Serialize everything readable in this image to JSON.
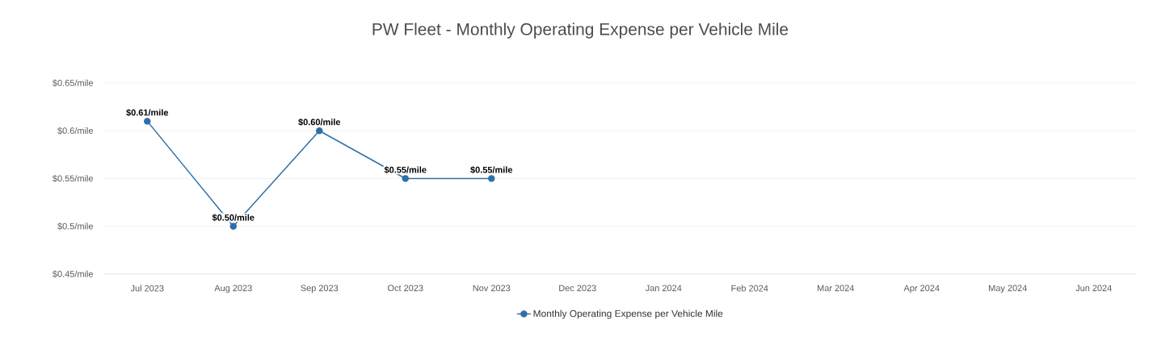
{
  "chart_data": {
    "type": "line",
    "title": "PW Fleet - Monthly Operating Expense per Vehicle Mile",
    "categories": [
      "Jul 2023",
      "Aug 2023",
      "Sep 2023",
      "Oct 2023",
      "Nov 2023",
      "Dec 2023",
      "Jan 2024",
      "Feb 2024",
      "Mar 2024",
      "Apr 2024",
      "May 2024",
      "Jun 2024"
    ],
    "series": [
      {
        "name": "Monthly Operating Expense per Vehicle Mile",
        "color": "#2e6fa7",
        "values": [
          0.61,
          0.5,
          0.6,
          0.55,
          0.55,
          null,
          null,
          null,
          null,
          null,
          null,
          null
        ],
        "value_labels": [
          "$0.61/mile",
          "$0.50/mile",
          "$0.60/mile",
          "$0.55/mile",
          "$0.55/mile",
          null,
          null,
          null,
          null,
          null,
          null,
          null
        ]
      }
    ],
    "ylim": [
      0.45,
      0.65
    ],
    "yticks": [
      {
        "value": 0.45,
        "label": "$0.45/mile"
      },
      {
        "value": 0.5,
        "label": "$0.5/mile"
      },
      {
        "value": 0.55,
        "label": "$0.55/mile"
      },
      {
        "value": 0.6,
        "label": "$0.6/mile"
      },
      {
        "value": 0.65,
        "label": "$0.65/mile"
      }
    ],
    "grid": "y",
    "legend": "bottom",
    "marker": "circle",
    "line_style": "solid"
  }
}
